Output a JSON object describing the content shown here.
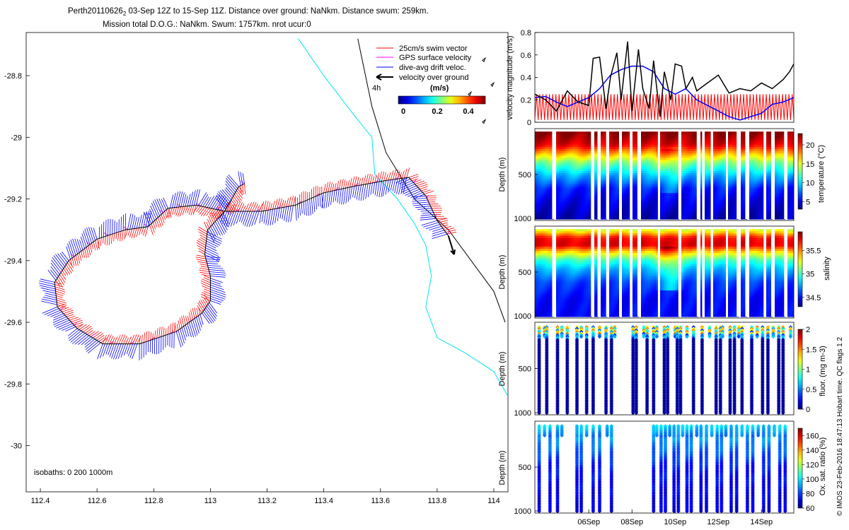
{
  "title": {
    "line1_prefix": "Perth20110626",
    "line1_sub": "2",
    "line1_rest": " 03-Sep 12Z to 15-Sep 11Z. Distance over ground: NaNkm. Distance swum: 259km.",
    "line2": "Mission total D.O.G.: NaNkm. Swum: 1757km. nrot ucur:0"
  },
  "colors": {
    "swim": "#ff0000",
    "gps": "#ff00ff",
    "drift": "#0000ff",
    "ground": "#000000",
    "isobath200": "#000000",
    "isobath1000": "#00e5ee",
    "coast": "#000000"
  },
  "chart_data": [
    {
      "type": "map",
      "id": "track_map",
      "xlabel": "",
      "ylabel": "",
      "xlim": [
        112.35,
        114.05
      ],
      "ylim": [
        -30.15,
        -28.66
      ],
      "xticks": [
        112.4,
        112.6,
        112.8,
        113,
        113.2,
        113.4,
        113.6,
        113.8,
        114
      ],
      "yticks": [
        -28.8,
        -29,
        -29.2,
        -29.4,
        -29.6,
        -29.8,
        -30
      ],
      "legend": {
        "position": "top-right",
        "entries": [
          {
            "label": "25cm/s swim vector",
            "color": "#ff0000"
          },
          {
            "label": "GPS surface velocity",
            "color": "#ff00ff"
          },
          {
            "label": "dive-avg drift veloc.",
            "color": "#0000ff"
          },
          {
            "label": "velocity over ground",
            "color": "#000000"
          }
        ],
        "scale_label": "4h",
        "colorbar_title": "(m/s)",
        "colorbar_ticks": [
          0,
          0.2,
          0.4
        ],
        "colorbar_range": [
          0,
          0.5
        ]
      },
      "annotation": "isobaths: 0   200   1000m",
      "track": [
        [
          113.12,
          -29.15
        ],
        [
          113.1,
          -29.16
        ],
        [
          113.05,
          -29.24
        ],
        [
          112.95,
          -29.22
        ],
        [
          112.85,
          -29.23
        ],
        [
          112.78,
          -29.29
        ],
        [
          112.7,
          -29.3
        ],
        [
          112.6,
          -29.33
        ],
        [
          112.5,
          -29.4
        ],
        [
          112.45,
          -29.47
        ],
        [
          112.46,
          -29.55
        ],
        [
          112.53,
          -29.62
        ],
        [
          112.62,
          -29.67
        ],
        [
          112.75,
          -29.67
        ],
        [
          112.88,
          -29.63
        ],
        [
          112.97,
          -29.57
        ],
        [
          113.0,
          -29.53
        ],
        [
          113.0,
          -29.45
        ],
        [
          112.98,
          -29.38
        ],
        [
          112.99,
          -29.3
        ],
        [
          113.05,
          -29.24
        ],
        [
          113.18,
          -29.24
        ],
        [
          113.3,
          -29.22
        ],
        [
          113.4,
          -29.18
        ],
        [
          113.5,
          -29.16
        ],
        [
          113.62,
          -29.14
        ],
        [
          113.7,
          -29.13
        ],
        [
          113.76,
          -29.19
        ],
        [
          113.8,
          -29.27
        ],
        [
          113.84,
          -29.32
        ]
      ],
      "ground_arrow": [
        [
          113.84,
          -29.32
        ],
        [
          113.86,
          -29.38
        ]
      ],
      "isobath_200": [
        [
          113.52,
          -28.68
        ],
        [
          113.57,
          -28.9
        ],
        [
          113.62,
          -29.05
        ],
        [
          113.72,
          -29.2
        ],
        [
          113.84,
          -29.3
        ],
        [
          113.92,
          -29.4
        ],
        [
          114.0,
          -29.5
        ],
        [
          114.04,
          -29.6
        ]
      ],
      "isobath_1000": [
        [
          113.31,
          -28.68
        ],
        [
          113.4,
          -28.8
        ],
        [
          113.5,
          -28.92
        ],
        [
          113.57,
          -29.0
        ],
        [
          113.58,
          -29.12
        ],
        [
          113.66,
          -29.2
        ],
        [
          113.72,
          -29.28
        ],
        [
          113.76,
          -29.35
        ],
        [
          113.78,
          -29.45
        ],
        [
          113.76,
          -29.55
        ],
        [
          113.8,
          -29.65
        ],
        [
          113.9,
          -29.7
        ],
        [
          114.0,
          -29.76
        ],
        [
          114.05,
          -29.84
        ]
      ],
      "islands": [
        [
          113.96,
          -28.75
        ],
        [
          113.99,
          -28.83
        ],
        [
          113.91,
          -28.86
        ],
        [
          113.96,
          -28.95
        ]
      ]
    },
    {
      "type": "line",
      "id": "velocity",
      "ylabel": "velocity magnitude (m/s)",
      "ylim": [
        0,
        0.8
      ],
      "yticks": [
        0,
        0.2,
        0.4,
        0.6,
        0.8
      ],
      "xlim_days": [
        3.5,
        15.5
      ],
      "series": [
        {
          "name": "swim",
          "color": "#ff0000",
          "type": "oscillating",
          "low": 0.02,
          "high": 0.25,
          "period_days": 0.15
        },
        {
          "name": "drift",
          "color": "#0000ff",
          "x": [
            3.5,
            4.0,
            4.5,
            5.0,
            5.5,
            6.0,
            6.5,
            7.0,
            7.5,
            8.0,
            8.5,
            9.0,
            9.5,
            10.0,
            10.5,
            11.0,
            11.5,
            12.0,
            12.5,
            13.0,
            13.5,
            14.0,
            14.5,
            15.0,
            15.5
          ],
          "y": [
            0.22,
            0.23,
            0.18,
            0.14,
            0.18,
            0.22,
            0.3,
            0.42,
            0.47,
            0.5,
            0.5,
            0.45,
            0.3,
            0.25,
            0.3,
            0.2,
            0.15,
            0.1,
            0.05,
            0.02,
            0.05,
            0.08,
            0.16,
            0.18,
            0.22
          ]
        },
        {
          "name": "ground",
          "color": "#000000",
          "x": [
            3.5,
            4.0,
            4.5,
            5.0,
            5.5,
            6.0,
            6.2,
            6.5,
            6.8,
            7.0,
            7.3,
            7.5,
            7.8,
            8.0,
            8.3,
            8.5,
            8.8,
            9.0,
            9.3,
            9.5,
            9.8,
            10.0,
            10.3,
            10.5,
            10.8,
            11.0,
            11.5,
            12.0,
            12.5,
            13.0,
            13.5,
            14.0,
            14.5,
            15.0,
            15.3,
            15.5
          ],
          "y": [
            0.25,
            0.2,
            0.1,
            0.28,
            0.18,
            0.15,
            0.57,
            0.58,
            0.12,
            0.4,
            0.62,
            0.2,
            0.72,
            0.1,
            0.65,
            0.3,
            0.12,
            0.55,
            0.05,
            0.45,
            0.2,
            0.52,
            0.5,
            0.3,
            0.4,
            0.28,
            0.35,
            0.42,
            0.26,
            0.3,
            0.28,
            0.35,
            0.3,
            0.38,
            0.45,
            0.52
          ]
        }
      ]
    },
    {
      "type": "scatter-colored",
      "id": "temperature",
      "ylabel": "Depth (m)",
      "yticks": [
        500,
        1000
      ],
      "ylim": [
        0,
        1000
      ],
      "colorbar_label": "temperature (°C)",
      "colorbar_ticks": [
        5,
        10,
        15,
        20
      ],
      "colorbar_range": [
        3,
        23
      ],
      "colormap": "jet",
      "profile": [
        [
          0,
          23
        ],
        [
          150,
          21
        ],
        [
          250,
          17
        ],
        [
          350,
          13
        ],
        [
          500,
          9
        ],
        [
          650,
          6
        ],
        [
          800,
          5
        ],
        [
          1000,
          4
        ]
      ],
      "gaps": [
        4.35,
        6.15,
        6.45,
        6.85,
        7.45,
        7.95,
        8.3,
        9.25,
        10.2,
        11.05,
        11.3,
        11.7,
        12.4,
        12.9,
        13.3,
        14.15,
        14.5,
        15.1
      ]
    },
    {
      "type": "scatter-colored",
      "id": "salinity",
      "ylabel": "Depth (m)",
      "yticks": [
        500,
        1000
      ],
      "ylim": [
        0,
        1000
      ],
      "colorbar_label": "salinity",
      "colorbar_ticks": [
        34.5,
        35,
        35.5
      ],
      "colorbar_range": [
        34.3,
        35.9
      ],
      "colormap": "jet",
      "profile": [
        [
          0,
          35.2
        ],
        [
          100,
          35.7
        ],
        [
          180,
          35.75
        ],
        [
          250,
          35.4
        ],
        [
          350,
          35.0
        ],
        [
          450,
          34.8
        ],
        [
          600,
          34.6
        ],
        [
          800,
          34.5
        ],
        [
          1000,
          34.5
        ]
      ],
      "gaps": [
        4.35,
        6.15,
        6.45,
        6.85,
        7.45,
        7.95,
        8.3,
        9.25,
        10.2,
        11.05,
        11.3,
        11.7,
        12.4,
        12.9,
        13.3,
        14.15,
        14.5,
        15.1
      ]
    },
    {
      "type": "scatter-colored",
      "id": "fluorescence",
      "ylabel": "Depth (m)",
      "yticks": [
        500,
        1000
      ],
      "ylim": [
        0,
        1000
      ],
      "colorbar_label": "fluor. (mg m-3)",
      "colorbar_ticks": [
        0,
        0.5,
        1,
        1.5,
        2
      ],
      "colorbar_range": [
        0,
        2
      ],
      "colormap": "jet",
      "casts": [
        3.7,
        3.95,
        4.05,
        4.55,
        4.75,
        5.0,
        5.45,
        5.65,
        5.9,
        6.2,
        6.5,
        6.8,
        7.05,
        7.2,
        8.05,
        8.2,
        8.55,
        8.7,
        9.0,
        9.15,
        9.5,
        9.65,
        10.0,
        10.1,
        10.25,
        10.55,
        10.85,
        11.25,
        11.6,
        11.9,
        12.1,
        12.2,
        12.55,
        12.75,
        12.95,
        13.1,
        13.55,
        13.8,
        14.05,
        14.3,
        14.55,
        14.8,
        15.0,
        15.35
      ]
    },
    {
      "type": "scatter-colored",
      "id": "oxygen",
      "ylabel": "Depth (m)",
      "yticks": [
        500,
        1000
      ],
      "ylim": [
        0,
        1000
      ],
      "xticks_days": [
        6,
        8,
        10,
        12,
        14
      ],
      "xtick_labels": [
        "06Sep",
        "08Sep",
        "10Sep",
        "12Sep",
        "14Sep"
      ],
      "colorbar_label": "Ox. sat. ratio (%)",
      "colorbar_ticks": [
        60,
        80,
        100,
        120,
        140,
        160
      ],
      "colorbar_range": [
        60,
        170
      ],
      "colormap": "jet",
      "casts": [
        3.7,
        3.95,
        4.2,
        4.55,
        4.75,
        5.45,
        5.65,
        5.9,
        6.2,
        6.5,
        6.85,
        7.05,
        9.0,
        9.15,
        9.35,
        9.55,
        9.75,
        9.95,
        10.15,
        10.35,
        10.55,
        10.75,
        11.0,
        11.2,
        11.45,
        11.7,
        11.95,
        12.15,
        12.35,
        12.6,
        12.85,
        13.1,
        13.35,
        13.6,
        13.85,
        14.1,
        14.35,
        14.6,
        14.85,
        15.1
      ]
    }
  ],
  "side_note": "© IMOS 23-Feb-2016 18:47:13 Hobart time. QC flags 1  2"
}
